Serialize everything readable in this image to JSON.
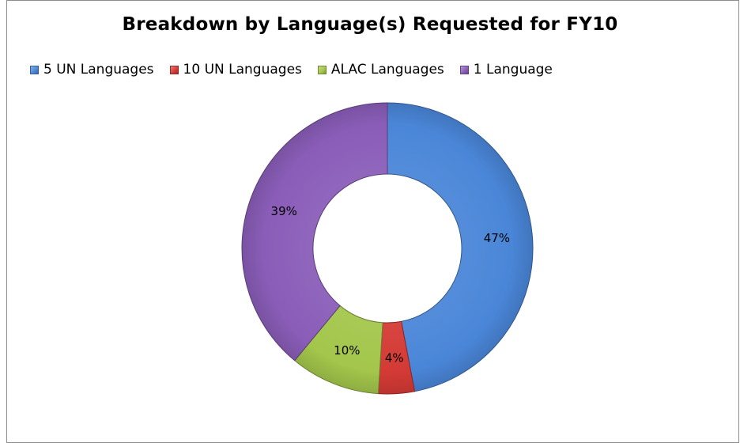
{
  "chart_data": {
    "type": "pie",
    "variant": "doughnut",
    "title": "Breakdown by Language(s) Requested for FY10",
    "legend_position": "top",
    "slices": [
      {
        "label": "5 UN Languages",
        "value": 47,
        "value_label": "47%",
        "color": "#4a86d8"
      },
      {
        "label": "10 UN Languages",
        "value": 4,
        "value_label": "4%",
        "color": "#d43a35"
      },
      {
        "label": "ALAC Languages",
        "value": 10,
        "value_label": "10%",
        "color": "#a3c64b"
      },
      {
        "label": "1 Language",
        "value": 39,
        "value_label": "39%",
        "color": "#8a5db8"
      }
    ]
  }
}
